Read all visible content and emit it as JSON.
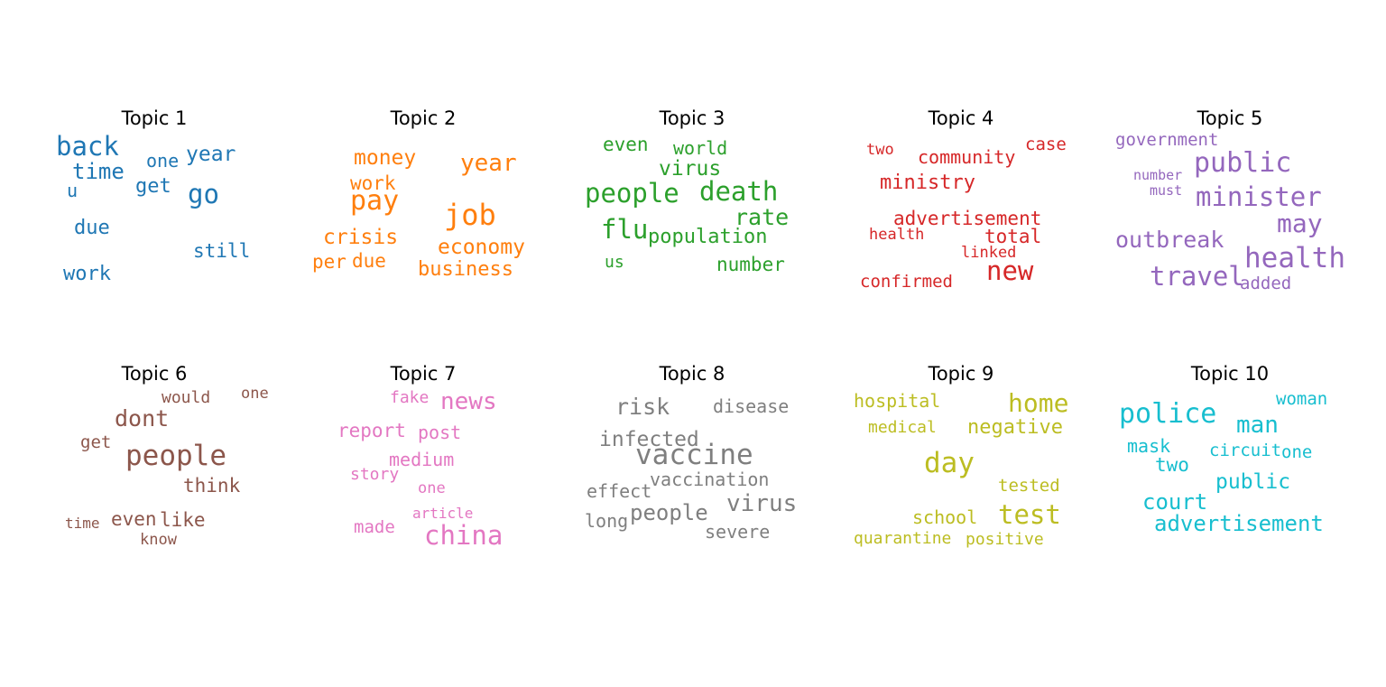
{
  "chart_data": {
    "type": "wordcloud",
    "layout": "2 rows x 5 columns",
    "topics": [
      {
        "title": "Topic 1",
        "color": "#1f77b4",
        "words": [
          "back",
          "time",
          "one",
          "year",
          "u",
          "get",
          "go",
          "due",
          "still",
          "work"
        ]
      },
      {
        "title": "Topic 2",
        "color": "#ff7f0e",
        "words": [
          "money",
          "year",
          "work",
          "pay",
          "job",
          "crisis",
          "economy",
          "per",
          "due",
          "business"
        ]
      },
      {
        "title": "Topic 3",
        "color": "#2ca02c",
        "words": [
          "even",
          "world",
          "virus",
          "people",
          "death",
          "rate",
          "flu",
          "population",
          "us",
          "number"
        ]
      },
      {
        "title": "Topic 4",
        "color": "#d62728",
        "words": [
          "two",
          "community",
          "case",
          "ministry",
          "advertisement",
          "health",
          "total",
          "linked",
          "confirmed",
          "new"
        ]
      },
      {
        "title": "Topic 5",
        "color": "#9467bd",
        "words": [
          "government",
          "public",
          "number",
          "must",
          "minister",
          "may",
          "outbreak",
          "health",
          "travel",
          "added"
        ]
      },
      {
        "title": "Topic 6",
        "color": "#8c564b",
        "words": [
          "would",
          "one",
          "dont",
          "get",
          "people",
          "think",
          "time",
          "even",
          "like",
          "know"
        ]
      },
      {
        "title": "Topic 7",
        "color": "#e377c2",
        "words": [
          "fake",
          "news",
          "report",
          "post",
          "medium",
          "story",
          "one",
          "article",
          "made",
          "china"
        ]
      },
      {
        "title": "Topic 8",
        "color": "#7f7f7f",
        "words": [
          "risk",
          "disease",
          "infected",
          "vaccine",
          "vaccination",
          "effect",
          "virus",
          "long",
          "people",
          "severe"
        ]
      },
      {
        "title": "Topic 9",
        "color": "#bcbd22",
        "words": [
          "hospital",
          "home",
          "medical",
          "negative",
          "day",
          "tested",
          "school",
          "test",
          "quarantine",
          "positive"
        ]
      },
      {
        "title": "Topic 10",
        "color": "#17becf",
        "words": [
          "woman",
          "police",
          "man",
          "mask",
          "circuit",
          "one",
          "two",
          "public",
          "court",
          "advertisement"
        ]
      }
    ]
  }
}
